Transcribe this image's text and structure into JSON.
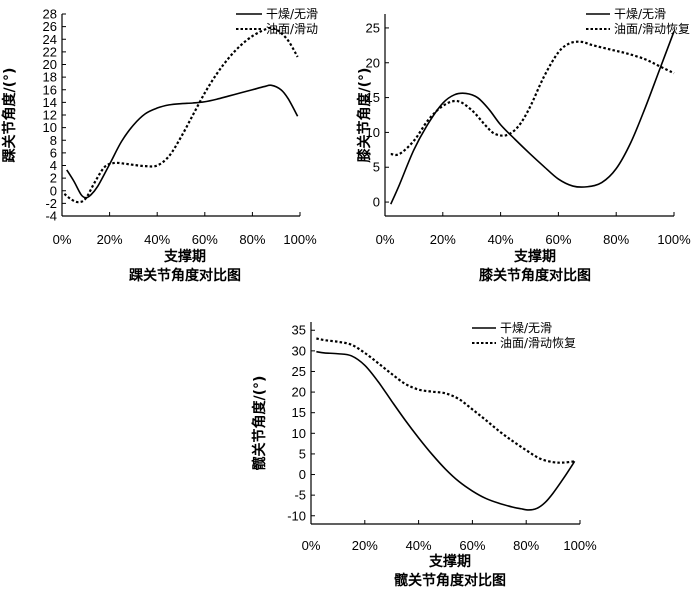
{
  "chart_data": [
    {
      "id": "ankle",
      "type": "line",
      "caption": "踝关节角度对比图",
      "xlabel": "支撑期",
      "ylabel": "踝关节角度/(°)",
      "xlim": [
        0,
        100
      ],
      "ylim": [
        -4,
        28
      ],
      "xticks": [
        0,
        20,
        40,
        60,
        80,
        100
      ],
      "xtick_labels": [
        "0%",
        "20%",
        "40%",
        "60%",
        "80%",
        "100%"
      ],
      "yticks": [
        -4,
        -2,
        0,
        2,
        4,
        6,
        8,
        10,
        12,
        14,
        16,
        18,
        20,
        22,
        24,
        26,
        28
      ],
      "ytick_labels": [
        "-4",
        "-2",
        "0",
        "2",
        "4",
        "6",
        "8",
        "10",
        "12",
        "14",
        "16",
        "18",
        "20",
        "22",
        "24",
        "26",
        "28"
      ],
      "legend_position": "top-right",
      "series": [
        {
          "name": "干燥/无滑",
          "style": "solid",
          "x": [
            2,
            5,
            8,
            10,
            12,
            15,
            20,
            25,
            30,
            35,
            40,
            45,
            50,
            55,
            60,
            65,
            70,
            75,
            80,
            85,
            88,
            92,
            95,
            99
          ],
          "y": [
            3.3,
            1.5,
            -0.6,
            -1.1,
            -0.7,
            0.7,
            4.2,
            7.8,
            10.4,
            12.2,
            13.1,
            13.6,
            13.8,
            13.9,
            14.1,
            14.5,
            15.0,
            15.5,
            16.0,
            16.5,
            16.7,
            16.0,
            14.6,
            11.8
          ]
        },
        {
          "name": "油面/滑动",
          "style": "dotted",
          "x": [
            1,
            4,
            7,
            10,
            14,
            18,
            22,
            26,
            30,
            35,
            40,
            45,
            50,
            55,
            60,
            65,
            70,
            75,
            80,
            85,
            88,
            91,
            95,
            99
          ],
          "y": [
            -0.5,
            -1.4,
            -1.8,
            -1.2,
            1.5,
            3.8,
            4.4,
            4.3,
            4.1,
            3.9,
            4.0,
            5.5,
            8.5,
            12.0,
            15.5,
            18.5,
            21.0,
            23.0,
            24.5,
            25.5,
            25.8,
            25.3,
            23.8,
            21.2
          ]
        }
      ]
    },
    {
      "id": "knee",
      "type": "line",
      "caption": "膝关节角度对比图",
      "xlabel": "支撑期",
      "ylabel": "膝关节角度/(°)",
      "xlim": [
        0,
        100
      ],
      "ylim": [
        -2,
        27
      ],
      "xticks": [
        0,
        20,
        40,
        60,
        80,
        100
      ],
      "xtick_labels": [
        "0%",
        "20%",
        "40%",
        "60%",
        "80%",
        "100%"
      ],
      "yticks": [
        0,
        5,
        10,
        15,
        20,
        25
      ],
      "ytick_labels": [
        "0",
        "5",
        "10",
        "15",
        "20",
        "25"
      ],
      "legend_position": "top-right",
      "series": [
        {
          "name": "干燥/无滑",
          "style": "solid",
          "x": [
            2,
            5,
            10,
            15,
            20,
            24,
            28,
            32,
            36,
            40,
            45,
            50,
            55,
            60,
            65,
            70,
            75,
            80,
            85,
            90,
            95,
            100
          ],
          "y": [
            -0.3,
            2.5,
            7.5,
            11.3,
            14.2,
            15.4,
            15.6,
            15.0,
            13.3,
            11.1,
            9.0,
            7.0,
            5.1,
            3.3,
            2.3,
            2.2,
            2.8,
            4.8,
            8.5,
            13.5,
            19.0,
            24.5
          ]
        },
        {
          "name": "油面/滑动恢复",
          "style": "dotted",
          "x": [
            2,
            5,
            10,
            15,
            20,
            25,
            30,
            35,
            38,
            42,
            46,
            50,
            55,
            60,
            64,
            68,
            72,
            78,
            84,
            90,
            95,
            100
          ],
          "y": [
            6.9,
            6.9,
            8.8,
            11.8,
            13.8,
            14.5,
            13.2,
            10.9,
            9.8,
            9.6,
            10.8,
            13.5,
            18.0,
            21.5,
            22.8,
            23.0,
            22.5,
            21.9,
            21.3,
            20.5,
            19.5,
            18.5
          ]
        }
      ]
    },
    {
      "id": "hip",
      "type": "line",
      "caption": "髋关节角度对比图",
      "xlabel": "支撑期",
      "ylabel": "髋关节角度/(°)",
      "xlim": [
        0,
        100
      ],
      "ylim": [
        -12,
        37
      ],
      "xticks": [
        0,
        20,
        40,
        60,
        80,
        100
      ],
      "xtick_labels": [
        "0%",
        "20%",
        "40%",
        "60%",
        "80%",
        "100%"
      ],
      "yticks": [
        -10,
        -5,
        0,
        5,
        10,
        15,
        20,
        25,
        30,
        35
      ],
      "ytick_labels": [
        "-10",
        "-5",
        "0",
        "5",
        "10",
        "15",
        "20",
        "25",
        "30",
        "35"
      ],
      "legend_position": "top-right",
      "series": [
        {
          "name": "干燥/无滑",
          "style": "solid",
          "x": [
            2,
            5,
            10,
            15,
            20,
            25,
            30,
            35,
            40,
            45,
            50,
            55,
            60,
            65,
            70,
            75,
            78,
            81,
            84,
            87,
            90,
            94,
            98
          ],
          "y": [
            29.8,
            29.5,
            29.3,
            28.8,
            26.5,
            22.5,
            17.8,
            13.2,
            8.9,
            4.9,
            1.3,
            -1.7,
            -4.0,
            -5.8,
            -7.0,
            -7.9,
            -8.3,
            -8.6,
            -8.2,
            -6.8,
            -4.5,
            -0.8,
            3.2
          ]
        },
        {
          "name": "油面/滑动恢复",
          "style": "dotted",
          "x": [
            2,
            5,
            10,
            15,
            20,
            25,
            30,
            35,
            40,
            45,
            50,
            55,
            60,
            65,
            70,
            75,
            80,
            85,
            90,
            94,
            98
          ],
          "y": [
            33.0,
            32.6,
            32.2,
            31.5,
            29.5,
            27.0,
            24.4,
            22.0,
            20.6,
            20.1,
            19.7,
            18.3,
            15.8,
            13.2,
            10.5,
            8.1,
            5.9,
            3.9,
            3.0,
            2.9,
            3.2
          ]
        }
      ]
    }
  ]
}
